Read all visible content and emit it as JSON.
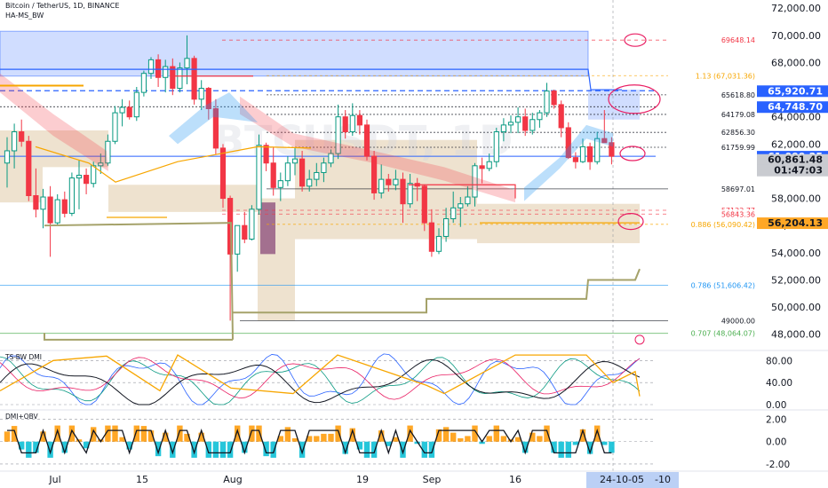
{
  "header": {
    "symbol_line": "Bitcoin / TetherUS, 1D, BINANCE",
    "indicator_line": "HA-MS_BW"
  },
  "colors": {
    "up": "#089981",
    "down": "#f23645",
    "accent_blue": "#2962ff",
    "price_label_blue": "#2962ff",
    "fib_orange": "#f7a600",
    "olive": "#a5a26a"
  },
  "chart_data": {
    "type": "candlestick",
    "title": "Bitcoin / TetherUS, 1D, BINANCE",
    "y_axis_labels": [
      "72,000.00",
      "70,000.00",
      "68,000.00",
      "66,000.00",
      "64,000.00",
      "62,000.00",
      "60,000.00",
      "58,000.00",
      "56,000.00",
      "54,000.00",
      "52,000.00",
      "50,000.00",
      "48,000.00"
    ],
    "ylim": [
      47000,
      72600
    ],
    "x_axis_labels": [
      "Jul",
      "15",
      "Aug",
      "19",
      "Sep",
      "16"
    ],
    "x_cursor_label": "24-10-05",
    "x_last_label": "-10",
    "level_lines": [
      {
        "label": "69648.14",
        "value": 69648.14,
        "style": "dashed"
      },
      {
        "label": "1.13 (67,031.36)",
        "value": 67031.36,
        "style": "fib"
      },
      {
        "label": "65618.80",
        "value": 65618.8,
        "style": "dotted"
      },
      {
        "label": "64179.08",
        "value": 64179.08,
        "style": "dotted"
      },
      {
        "label": "62856.30",
        "value": 62856.3,
        "style": "dotted"
      },
      {
        "label": "61759.99",
        "value": 61759.99,
        "style": "dotted"
      },
      {
        "label": "58697.01",
        "value": 58697.01,
        "style": "solid"
      },
      {
        "label": "57122.77",
        "value": 57122.77,
        "style": "dashed"
      },
      {
        "label": "56843.36",
        "value": 56843.36,
        "style": "dashed"
      },
      {
        "label": "0.886 (56,090.42)",
        "value": 56090.42,
        "style": "fib"
      },
      {
        "label": "0.786 (51,606.42)",
        "value": 51606.42,
        "style": "fib-blue"
      },
      {
        "label": "49000.00",
        "value": 49000,
        "style": "solid"
      },
      {
        "label": "0.707 (48,064.07)",
        "value": 48064.07,
        "style": "fib-green"
      }
    ],
    "price_tags": [
      {
        "label": "65,920.71",
        "value": 65920.71,
        "kind": "blue"
      },
      {
        "label": "64,748.70",
        "value": 64748.7,
        "kind": "blue"
      },
      {
        "label": "61,099.25",
        "value": 61099.25,
        "kind": "blue"
      },
      {
        "label": "60,861.48",
        "value": 60861.48,
        "kind": "gray"
      },
      {
        "label": "01:47:03",
        "value": 60000,
        "kind": "gray-sub"
      },
      {
        "label": "56,204.13",
        "value": 56204.13,
        "kind": "orange"
      }
    ],
    "candles_ohlc": [
      [
        60600,
        62500,
        58800,
        61500
      ],
      [
        61500,
        63500,
        60200,
        62900
      ],
      [
        62900,
        63800,
        61800,
        62200
      ],
      [
        62200,
        62600,
        57800,
        58200
      ],
      [
        58200,
        60200,
        56600,
        57200
      ],
      [
        57200,
        58700,
        55800,
        58100
      ],
      [
        58100,
        58900,
        53700,
        56200
      ],
      [
        56200,
        58300,
        56000,
        57900
      ],
      [
        57900,
        58500,
        56600,
        56900
      ],
      [
        56900,
        59900,
        56700,
        59500
      ],
      [
        59500,
        60800,
        57200,
        59700
      ],
      [
        59700,
        60200,
        58300,
        59100
      ],
      [
        59100,
        60700,
        58800,
        60400
      ],
      [
        60400,
        61300,
        59800,
        60600
      ],
      [
        60600,
        62700,
        60400,
        62200
      ],
      [
        62200,
        64800,
        62000,
        64300
      ],
      [
        64300,
        65300,
        63300,
        64700
      ],
      [
        64700,
        65200,
        63800,
        64000
      ],
      [
        64000,
        66200,
        63700,
        65800
      ],
      [
        65800,
        67400,
        65500,
        67200
      ],
      [
        67200,
        68400,
        66800,
        68200
      ],
      [
        68200,
        68600,
        66200,
        66900
      ],
      [
        66900,
        68200,
        65800,
        67700
      ],
      [
        67700,
        68300,
        65600,
        66100
      ],
      [
        66100,
        68000,
        65800,
        67600
      ],
      [
        67600,
        70000,
        66400,
        68300
      ],
      [
        68300,
        68500,
        64900,
        65300
      ],
      [
        65300,
        66700,
        64500,
        66100
      ],
      [
        66100,
        66200,
        63800,
        64600
      ],
      [
        64600,
        65300,
        61200,
        61700
      ],
      [
        61700,
        62000,
        57300,
        58000
      ],
      [
        58000,
        58200,
        49000,
        53900
      ],
      [
        53900,
        56000,
        52600,
        56000
      ],
      [
        56000,
        57000,
        54700,
        55000
      ],
      [
        55000,
        57500,
        54900,
        57200
      ],
      [
        57200,
        62700,
        56800,
        61900
      ],
      [
        61900,
        62100,
        60000,
        60600
      ],
      [
        60600,
        61800,
        58200,
        58800
      ],
      [
        58800,
        59900,
        57800,
        59300
      ],
      [
        59300,
        61100,
        58900,
        60600
      ],
      [
        60600,
        61700,
        59700,
        60900
      ],
      [
        60900,
        61500,
        58500,
        58900
      ],
      [
        58900,
        60100,
        58500,
        59400
      ],
      [
        59400,
        60600,
        58900,
        59900
      ],
      [
        59900,
        61000,
        59200,
        60600
      ],
      [
        60600,
        61600,
        60300,
        61300
      ],
      [
        61300,
        64900,
        60900,
        64000
      ],
      [
        64000,
        64500,
        62400,
        62900
      ],
      [
        62900,
        65000,
        62600,
        64100
      ],
      [
        64100,
        64500,
        62700,
        63400
      ],
      [
        63400,
        63800,
        60800,
        61100
      ],
      [
        61100,
        61500,
        57900,
        58400
      ],
      [
        58400,
        60500,
        58000,
        59400
      ],
      [
        59400,
        59800,
        58500,
        59000
      ],
      [
        59000,
        60100,
        58600,
        59400
      ],
      [
        59400,
        59900,
        56200,
        57600
      ],
      [
        57600,
        59800,
        57300,
        59100
      ],
      [
        59100,
        59500,
        57800,
        58900
      ],
      [
        58900,
        59000,
        55600,
        56200
      ],
      [
        56200,
        57200,
        53700,
        54100
      ],
      [
        54100,
        55800,
        53900,
        55200
      ],
      [
        55200,
        57300,
        54800,
        56500
      ],
      [
        56500,
        58500,
        56200,
        57300
      ],
      [
        57300,
        58100,
        55900,
        57600
      ],
      [
        57600,
        58900,
        57400,
        58100
      ],
      [
        58100,
        60600,
        57400,
        60400
      ],
      [
        60400,
        61000,
        59100,
        60200
      ],
      [
        60200,
        61300,
        60000,
        60700
      ],
      [
        60700,
        63200,
        60300,
        62900
      ],
      [
        62900,
        63900,
        62200,
        63400
      ],
      [
        63400,
        64100,
        62800,
        63600
      ],
      [
        63600,
        64700,
        62800,
        64000
      ],
      [
        64000,
        64600,
        62600,
        63000
      ],
      [
        63000,
        64300,
        62700,
        63800
      ],
      [
        63800,
        64500,
        63200,
        64300
      ],
      [
        64300,
        66500,
        64000,
        65900
      ],
      [
        65900,
        66000,
        64600,
        64900
      ],
      [
        64900,
        65200,
        62500,
        63200
      ],
      [
        63200,
        63600,
        60900,
        61000
      ],
      [
        61000,
        61400,
        60200,
        60700
      ],
      [
        60700,
        62400,
        60600,
        61800
      ],
      [
        61800,
        62100,
        60100,
        60700
      ],
      [
        60700,
        62900,
        60500,
        62400
      ],
      [
        62400,
        64500,
        62100,
        62100
      ],
      [
        62100,
        62500,
        60500,
        61100
      ]
    ],
    "dmi_axis_labels": [
      "80.00",
      "40.00",
      "0.00"
    ],
    "dmi_label": "TS-BW DMI",
    "obv_axis_labels": [
      "2.00",
      "0.00",
      "-2.00"
    ],
    "obv_label": "DMI+OBV",
    "grid": false
  }
}
